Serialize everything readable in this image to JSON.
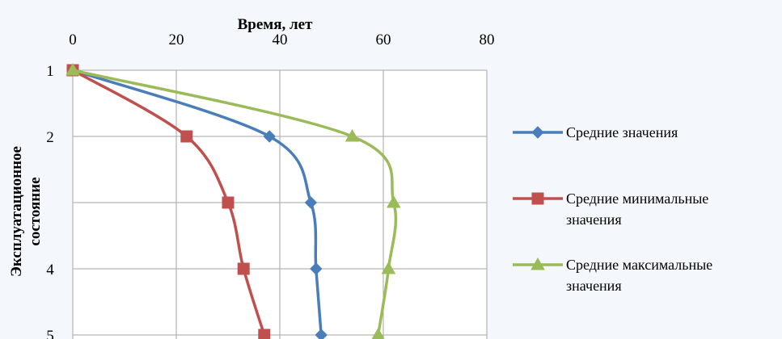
{
  "chart_data": {
    "type": "line",
    "title": "Время, лет",
    "xlabel": "Время, лет",
    "ylabel": [
      "Эксплуатационное",
      "состояние"
    ],
    "x_axis_position": "top",
    "y_axis_inverted": true,
    "x_range": [
      0,
      80
    ],
    "y_range": [
      1,
      5
    ],
    "x_ticks": [
      0,
      20,
      40,
      60,
      80
    ],
    "x_tick_labels": [
      "0",
      "20",
      "40",
      "60",
      "80"
    ],
    "y_ticks": [
      1,
      2,
      3,
      4,
      5
    ],
    "y_tick_labels": [
      "1",
      "2",
      "",
      "4",
      "5"
    ],
    "grid": true,
    "legend_position": "right",
    "series": [
      {
        "name": "Средние значения",
        "name_lines": [
          "Средние значения"
        ],
        "color": "#4a7ebb",
        "marker": "diamond",
        "points": [
          [
            0,
            1
          ],
          [
            38,
            2
          ],
          [
            46,
            3
          ],
          [
            47,
            4
          ],
          [
            48,
            5
          ]
        ]
      },
      {
        "name": "Средние минимальные значения",
        "name_lines": [
          "Средние минимальные",
          "значения"
        ],
        "color": "#c0504d",
        "marker": "square",
        "points": [
          [
            0,
            1
          ],
          [
            22,
            2
          ],
          [
            30,
            3
          ],
          [
            33,
            4
          ],
          [
            37,
            5
          ]
        ]
      },
      {
        "name": "Средние максимальные значения",
        "name_lines": [
          "Средние максимальные",
          "значения"
        ],
        "color": "#9bbb59",
        "marker": "triangle",
        "points": [
          [
            0,
            1
          ],
          [
            54,
            2
          ],
          [
            62,
            3
          ],
          [
            61,
            4
          ],
          [
            59,
            5
          ]
        ]
      }
    ]
  }
}
